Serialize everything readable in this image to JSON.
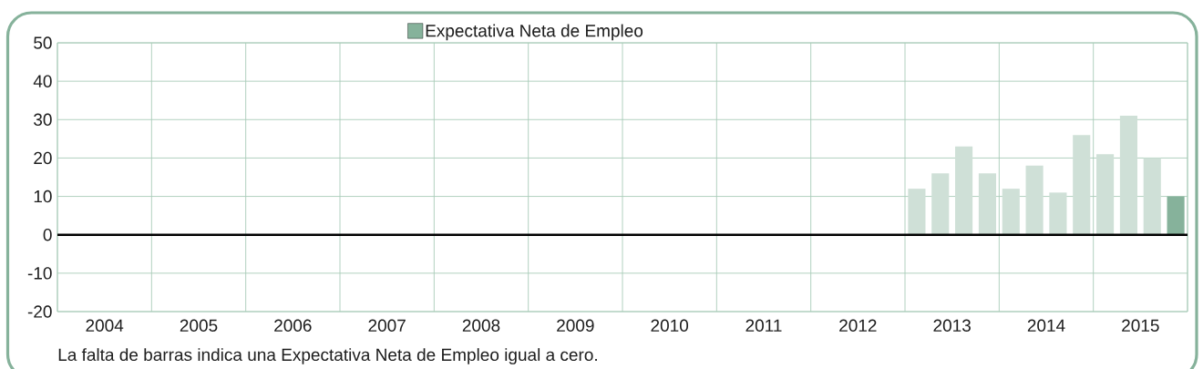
{
  "chart_data": {
    "type": "bar",
    "x": [
      2013.125,
      2013.375,
      2013.625,
      2013.875,
      2014.125,
      2014.375,
      2014.625,
      2014.875,
      2015.125,
      2015.375,
      2015.625,
      2015.875
    ],
    "series": [
      {
        "name": "Expectativa Neta de Empleo",
        "color": "#86b29b",
        "colors": [
          "#cfe0d7",
          "#cfe0d7",
          "#cfe0d7",
          "#cfe0d7",
          "#cfe0d7",
          "#cfe0d7",
          "#cfe0d7",
          "#cfe0d7",
          "#cfe0d7",
          "#cfe0d7",
          "#cfe0d7",
          "#86b29b"
        ],
        "values": [
          12,
          16,
          23,
          16,
          12,
          18,
          11,
          26,
          21,
          31,
          20,
          10
        ]
      }
    ],
    "xlim": [
      2004,
      2016
    ],
    "xticks": [
      {
        "value": 2004,
        "label": null
      },
      {
        "value": 2004.5,
        "label": "2004"
      },
      {
        "value": 2005,
        "label": null
      },
      {
        "value": 2005.5,
        "label": "2005"
      },
      {
        "value": 2006,
        "label": null
      },
      {
        "value": 2006.5,
        "label": "2006"
      },
      {
        "value": 2007,
        "label": null
      },
      {
        "value": 2007.5,
        "label": "2007"
      },
      {
        "value": 2008,
        "label": null
      },
      {
        "value": 2008.5,
        "label": "2008"
      },
      {
        "value": 2009,
        "label": null
      },
      {
        "value": 2009.5,
        "label": "2009"
      },
      {
        "value": 2010,
        "label": null
      },
      {
        "value": 2010.5,
        "label": "2010"
      },
      {
        "value": 2011,
        "label": null
      },
      {
        "value": 2011.5,
        "label": "2011"
      },
      {
        "value": 2012,
        "label": null
      },
      {
        "value": 2012.5,
        "label": "2012"
      },
      {
        "value": 2013,
        "label": null
      },
      {
        "value": 2013.5,
        "label": "2013"
      },
      {
        "value": 2014,
        "label": null
      },
      {
        "value": 2014.5,
        "label": "2014"
      },
      {
        "value": 2015,
        "label": null
      },
      {
        "value": 2015.5,
        "label": "2015"
      },
      {
        "value": 2016,
        "label": null
      }
    ],
    "ylim": [
      -20,
      50
    ],
    "yticks": [
      -20,
      -10,
      0,
      10,
      20,
      30,
      40,
      50
    ],
    "grid": true,
    "legend": "top",
    "ref_lines": [
      {
        "axis": "y",
        "value": 0,
        "color": "#000000"
      }
    ],
    "annotations": [
      "La falta de barras indica una Expectativa Neta de Empleo igual a cero."
    ]
  }
}
